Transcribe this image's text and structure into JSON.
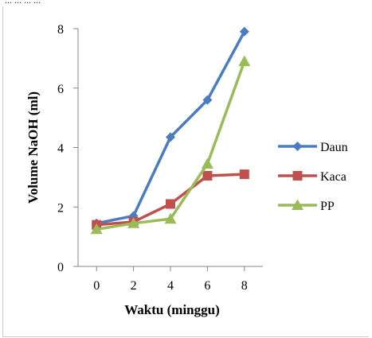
{
  "caption": "... ... ... ...",
  "chart_data": {
    "type": "line",
    "x": [
      0,
      2,
      4,
      6,
      8
    ],
    "xlabel": "Waktu (minggu)",
    "ylabel": "Volume NaOH (ml)",
    "xlim": [
      -1,
      9
    ],
    "ylim": [
      0,
      8
    ],
    "yticks": [
      0,
      2,
      4,
      6,
      8
    ],
    "xticks": [
      0,
      2,
      4,
      6,
      8
    ],
    "grid": false,
    "legend": "right",
    "series": [
      {
        "name": "Daun",
        "values": [
          1.45,
          1.7,
          4.35,
          5.6,
          7.9
        ],
        "color": "#4a7cc2",
        "marker": "diamond"
      },
      {
        "name": "Kaca",
        "values": [
          1.4,
          1.5,
          2.1,
          3.05,
          3.1
        ],
        "color": "#c0504d",
        "marker": "square"
      },
      {
        "name": "PP",
        "values": [
          1.25,
          1.45,
          1.6,
          3.45,
          6.9
        ],
        "color": "#9bbb59",
        "marker": "triangle"
      }
    ]
  }
}
